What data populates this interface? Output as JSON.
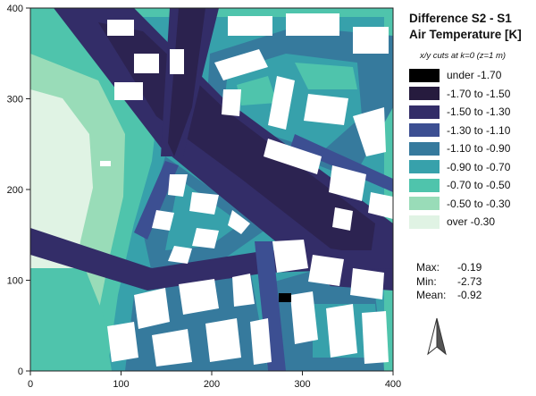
{
  "legend": {
    "title_line1": "Difference S2 - S1",
    "title_line2": "Air Temperature [K]",
    "subtitle": "x/y cuts at k=0 (z=1 m)",
    "items": [
      {
        "label": "under -1.70",
        "color": "#000000"
      },
      {
        "label": "-1.70 to -1.50",
        "color": "#261b3e"
      },
      {
        "label": "-1.50 to -1.30",
        "color": "#332d68"
      },
      {
        "label": "-1.30 to -1.10",
        "color": "#3c4f92"
      },
      {
        "label": "-1.10 to -0.90",
        "color": "#367a9d"
      },
      {
        "label": "-0.90 to -0.70",
        "color": "#37a1ab"
      },
      {
        "label": "-0.70 to -0.50",
        "color": "#4fc4ac"
      },
      {
        "label": "-0.50 to -0.30",
        "color": "#99dcb8"
      },
      {
        "label": "over -0.30",
        "color": "#e0f3e4"
      }
    ]
  },
  "stats": {
    "max_label": "Max:",
    "max_value": "-0.19",
    "min_label": "Min:",
    "min_value": "-2.73",
    "mean_label": "Mean:",
    "mean_value": "-0.92"
  },
  "axes": {
    "x_ticks": [
      "0",
      "100",
      "200",
      "300",
      "400"
    ],
    "y_ticks": [
      "0",
      "100",
      "200",
      "300",
      "400"
    ]
  },
  "north_arrow_icon": "north-arrow-icon"
}
